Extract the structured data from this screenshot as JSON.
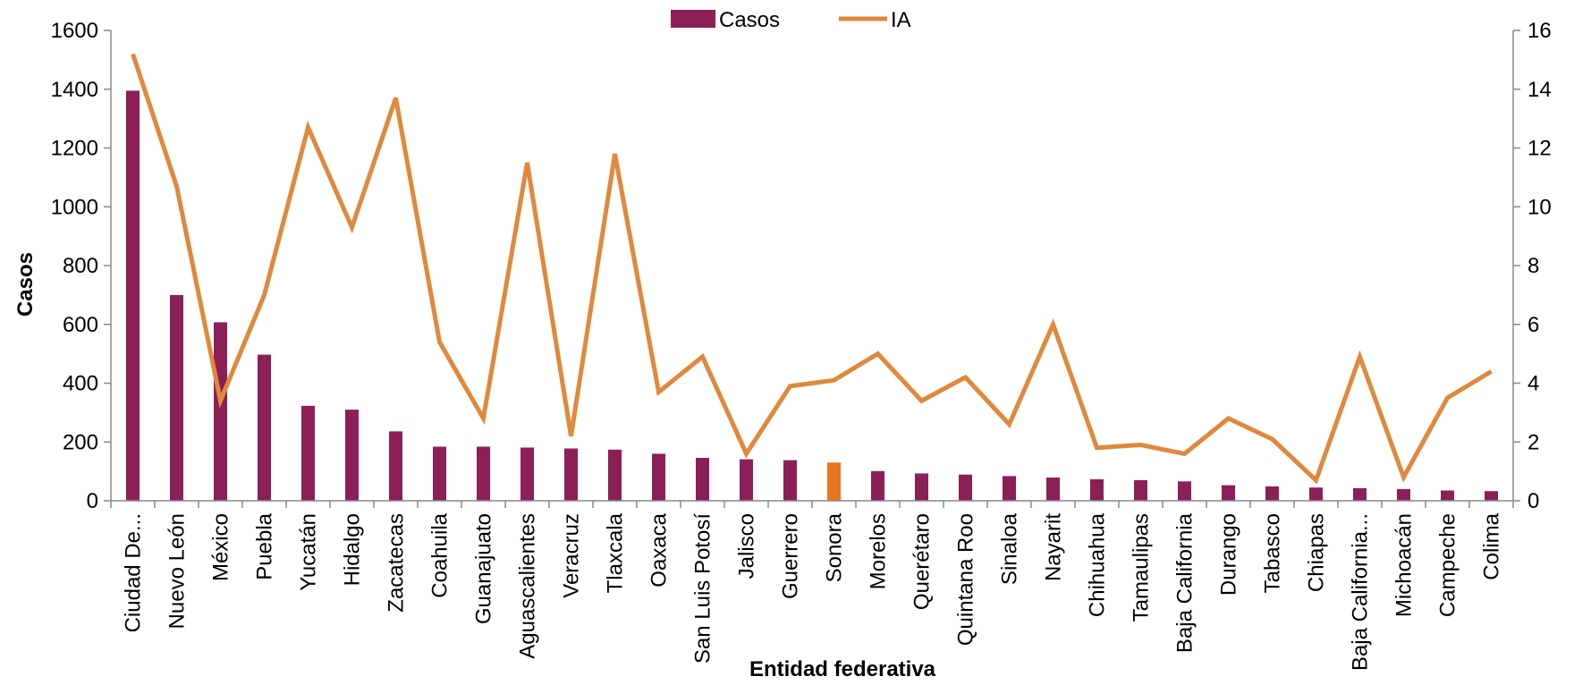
{
  "chart_data": {
    "type": "bar",
    "categories": [
      "Ciudad De...",
      "Nuevo León",
      "México",
      "Puebla",
      "Yucatán",
      "Hidalgo",
      "Zacatecas",
      "Coahuila",
      "Guanajuato",
      "Aguascalientes",
      "Veracruz",
      "Tlaxcala",
      "Oaxaca",
      "San Luis Potosí",
      "Jalisco",
      "Guerrero",
      "Sonora",
      "Morelos",
      "Querétaro",
      "Quintana Roo",
      "Sinaloa",
      "Nayarit",
      "Chihuahua",
      "Tamaulipas",
      "Baja California",
      "Durango",
      "Tabasco",
      "Chiapas",
      "Baja California...",
      "Michoacán",
      "Campeche",
      "Colima"
    ],
    "series": [
      {
        "name": "Casos",
        "type": "bar",
        "axis": "left",
        "color": "#8c1f58",
        "highlight_index": 16,
        "highlight_color": "#e8731c",
        "values": [
          1395,
          700,
          607,
          497,
          323,
          310,
          236,
          184,
          184,
          181,
          178,
          174,
          160,
          146,
          141,
          138,
          130,
          101,
          93,
          89,
          84,
          79,
          73,
          70,
          66,
          53,
          49,
          45,
          43,
          40,
          35,
          33
        ]
      },
      {
        "name": "IA",
        "type": "line",
        "axis": "right",
        "color": "#e0883c",
        "values": [
          15.2,
          10.7,
          3.4,
          7.0,
          12.7,
          9.3,
          13.7,
          5.4,
          2.8,
          11.5,
          2.2,
          11.8,
          3.7,
          4.9,
          1.6,
          3.9,
          4.1,
          5.0,
          3.4,
          4.2,
          2.6,
          6.0,
          1.8,
          1.9,
          1.6,
          2.8,
          2.1,
          0.7,
          4.9,
          0.8,
          3.5,
          4.4
        ]
      }
    ],
    "xlabel": "Entidad federativa",
    "ylabel": "Casos",
    "ylabel_right": "",
    "ylim": [
      0,
      1600
    ],
    "ylim_right": [
      0,
      16
    ],
    "yticks": [
      "0",
      "200",
      "400",
      "600",
      "800",
      "1000",
      "1200",
      "1400",
      "1600"
    ],
    "yticks_right": [
      "0",
      "2",
      "4",
      "6",
      "8",
      "10",
      "12",
      "14",
      "16"
    ],
    "grid": false,
    "legend_position": "top-center"
  }
}
